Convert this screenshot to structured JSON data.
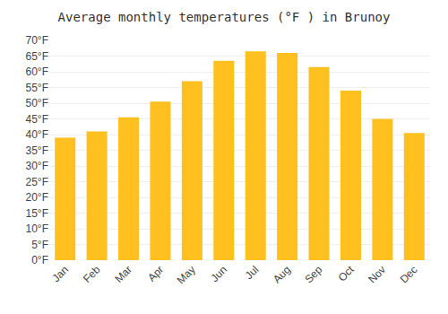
{
  "chart_data": {
    "type": "bar",
    "title": "Average monthly temperatures (°F ) in Brunoy",
    "categories": [
      "Jan",
      "Feb",
      "Mar",
      "Apr",
      "May",
      "Jun",
      "Jul",
      "Aug",
      "Sep",
      "Oct",
      "Nov",
      "Dec"
    ],
    "values": [
      39,
      41,
      45.5,
      50.5,
      57,
      63.5,
      66.5,
      66,
      61.5,
      54,
      45,
      40.5
    ],
    "color": "#FFC020",
    "ylim": [
      0,
      70
    ],
    "yticks": [
      {
        "value": 0,
        "label": "0°F"
      },
      {
        "value": 5,
        "label": "5°F"
      },
      {
        "value": 10,
        "label": "10°F"
      },
      {
        "value": 15,
        "label": "15°F"
      },
      {
        "value": 20,
        "label": "20°F"
      },
      {
        "value": 25,
        "label": "25°F"
      },
      {
        "value": 30,
        "label": "30°F"
      },
      {
        "value": 35,
        "label": "35°F"
      },
      {
        "value": 40,
        "label": "40°F"
      },
      {
        "value": 45,
        "label": "45°F"
      },
      {
        "value": 50,
        "label": "50°F"
      },
      {
        "value": 55,
        "label": "55°F"
      },
      {
        "value": 60,
        "label": "60°F"
      },
      {
        "value": 65,
        "label": "65°F"
      },
      {
        "value": 70,
        "label": "70°F"
      }
    ],
    "grid": true
  }
}
